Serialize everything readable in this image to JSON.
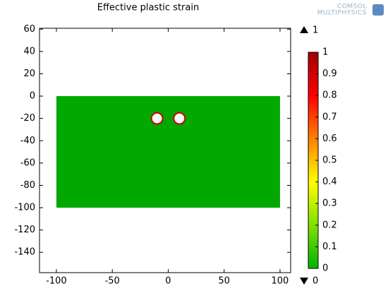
{
  "chart_data": {
    "type": "surface",
    "title": "Effective plastic strain",
    "logo": [
      "COMSOL",
      "MULTIPHYSICS"
    ],
    "xlim": [
      -115.1,
      109.5
    ],
    "ylim": [
      -158.2,
      60.8
    ],
    "xticks": [
      -100,
      -50,
      0,
      50,
      100
    ],
    "yticks": [
      60,
      40,
      20,
      0,
      -20,
      -40,
      -60,
      -80,
      -100,
      -120,
      -140
    ],
    "domain": {
      "x": [
        -100,
        100
      ],
      "y": [
        -100,
        0
      ],
      "color": "#00a800"
    },
    "holes": [
      {
        "x": -10,
        "y": -20,
        "r": 5
      },
      {
        "x": 10,
        "y": -20,
        "r": 5
      }
    ],
    "hole_edge_color": "#cc0000",
    "clim": [
      0,
      1
    ],
    "cticks": [
      0,
      0.1,
      0.2,
      0.3,
      0.4,
      0.5,
      0.6,
      0.7,
      0.8,
      0.9,
      1
    ],
    "colormap": [
      "#00b400",
      "#80e000",
      "#ffff00",
      "#ff8000",
      "#ff0000",
      "#a00000"
    ],
    "color_max": 1,
    "color_min": 0
  }
}
